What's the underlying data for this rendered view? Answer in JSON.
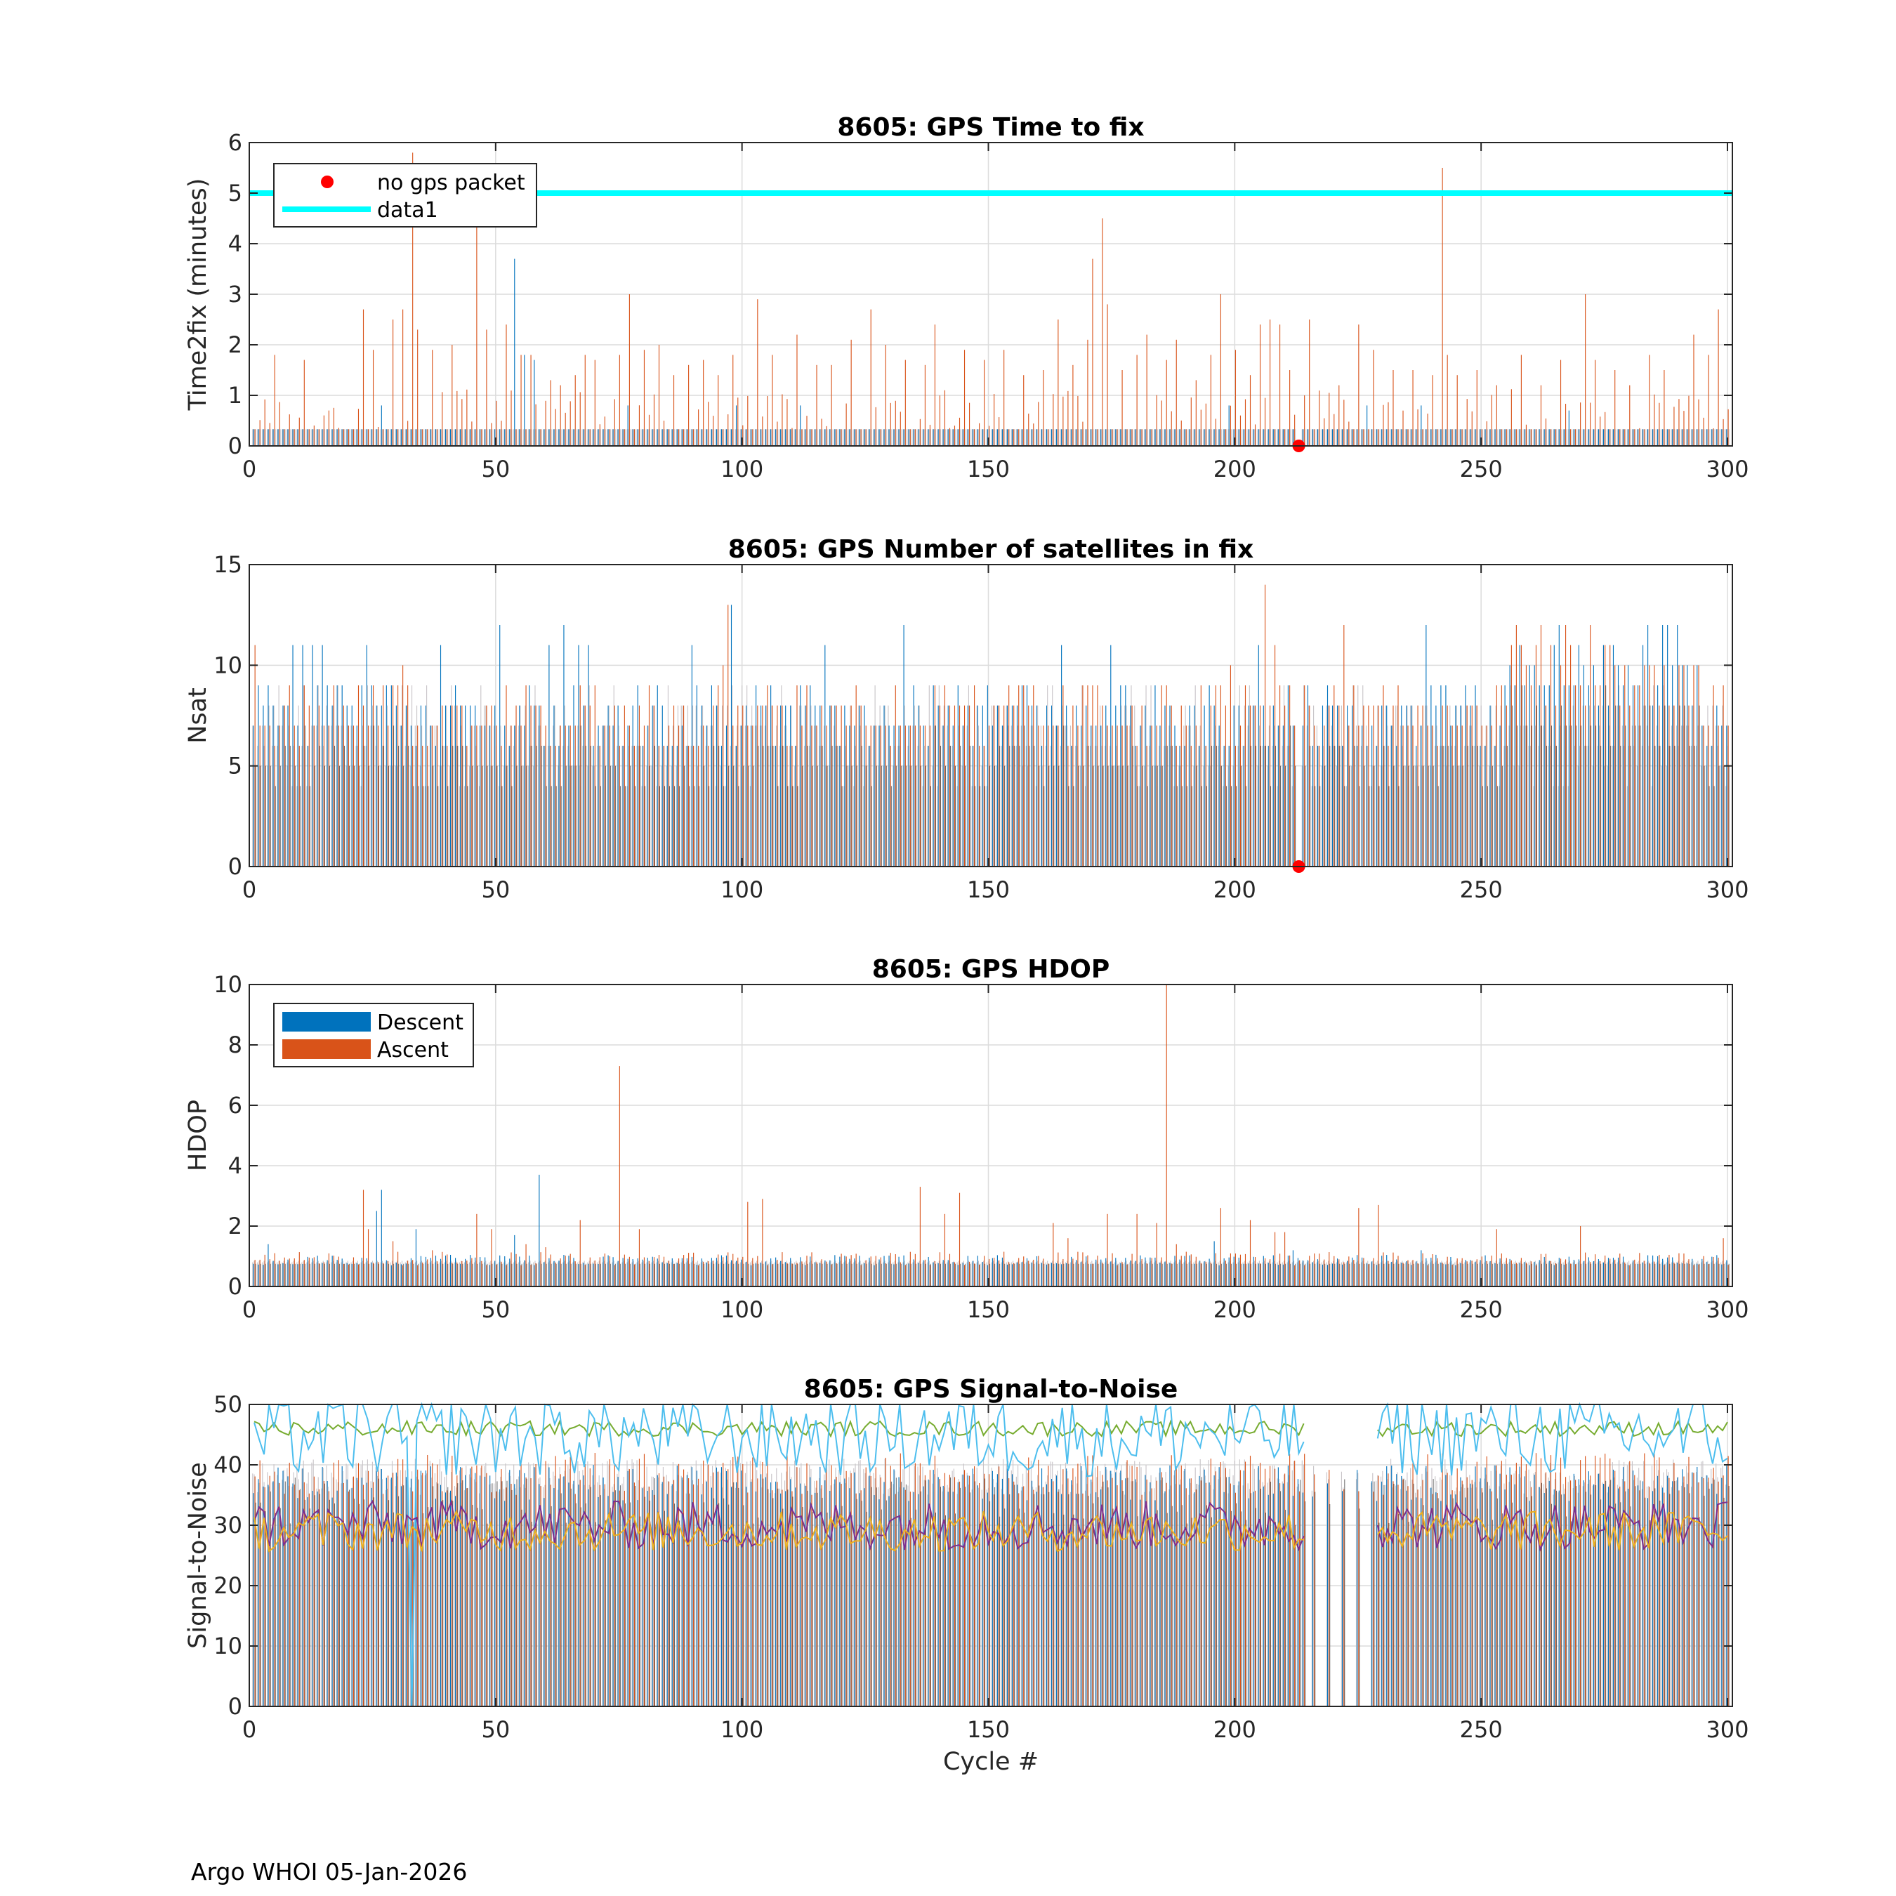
{
  "figure": {
    "footer": "Argo WHOI 05-Jan-2026",
    "series_colors": {
      "descent": "#0072BD",
      "ascent": "#D95319",
      "faded": "#C8C4C8",
      "threshold": "#00FFFF",
      "no_gps_marker": "#FF0000",
      "snr_lines": [
        "#77AC30",
        "#4DBEEE",
        "#7E2F8E",
        "#EDB120"
      ]
    }
  },
  "chart_data": [
    {
      "type": "bar",
      "id": "time2fix",
      "title": "8605: GPS Time to fix",
      "xlabel": "",
      "ylabel": "Time2fix (minutes)",
      "xlim": [
        0,
        301
      ],
      "ylim": [
        0,
        6
      ],
      "xticks": [
        "0",
        "50",
        "100",
        "150",
        "200",
        "250",
        "300"
      ],
      "yticks": [
        "0",
        "1",
        "2",
        "3",
        "4",
        "5",
        "6"
      ],
      "grid": true,
      "threshold_line": {
        "label": "data1",
        "y": 5
      },
      "no_gps_packet": {
        "label": "no gps packet",
        "cycles": [
          213
        ]
      },
      "legend": {
        "placement": "top-left",
        "entries": [
          "no gps packet",
          "data1"
        ]
      },
      "notable_ascent": [
        [
          5,
          1.8
        ],
        [
          11,
          1.7
        ],
        [
          16,
          0.7
        ],
        [
          23,
          2.7
        ],
        [
          25,
          1.9
        ],
        [
          29,
          2.5
        ],
        [
          31,
          2.7
        ],
        [
          33,
          5.8
        ],
        [
          34,
          2.3
        ],
        [
          37,
          1.9
        ],
        [
          41,
          2.0
        ],
        [
          46,
          4.4
        ],
        [
          48,
          2.3
        ],
        [
          52,
          2.4
        ],
        [
          55,
          1.8
        ],
        [
          57,
          1.8
        ],
        [
          61,
          1.3
        ],
        [
          63,
          1.2
        ],
        [
          66,
          1.4
        ],
        [
          68,
          1.8
        ],
        [
          70,
          1.7
        ],
        [
          75,
          1.8
        ],
        [
          77,
          3.0
        ],
        [
          80,
          1.9
        ],
        [
          83,
          2.0
        ],
        [
          86,
          1.4
        ],
        [
          89,
          1.6
        ],
        [
          92,
          1.7
        ],
        [
          95,
          1.4
        ],
        [
          98,
          1.8
        ],
        [
          103,
          2.9
        ],
        [
          106,
          1.8
        ],
        [
          111,
          2.2
        ],
        [
          115,
          1.6
        ],
        [
          118,
          1.6
        ],
        [
          122,
          2.1
        ],
        [
          126,
          2.7
        ],
        [
          129,
          2.0
        ],
        [
          133,
          1.7
        ],
        [
          137,
          1.6
        ],
        [
          139,
          2.4
        ],
        [
          141,
          1.1
        ],
        [
          145,
          1.9
        ],
        [
          149,
          1.7
        ],
        [
          153,
          1.9
        ],
        [
          157,
          1.4
        ],
        [
          161,
          1.5
        ],
        [
          164,
          2.5
        ],
        [
          167,
          1.6
        ],
        [
          170,
          2.1
        ],
        [
          171,
          3.7
        ],
        [
          173,
          4.5
        ],
        [
          174,
          2.8
        ],
        [
          177,
          1.5
        ],
        [
          180,
          1.8
        ],
        [
          182,
          2.2
        ],
        [
          186,
          1.7
        ],
        [
          188,
          2.1
        ],
        [
          192,
          1.3
        ],
        [
          195,
          1.8
        ],
        [
          197,
          3.0
        ],
        [
          200,
          1.9
        ],
        [
          203,
          1.4
        ],
        [
          205,
          2.4
        ],
        [
          207,
          2.5
        ],
        [
          209,
          2.4
        ],
        [
          211,
          1.5
        ],
        [
          214,
          1.0
        ],
        [
          215,
          2.5
        ],
        [
          221,
          1.2
        ],
        [
          225,
          2.4
        ],
        [
          228,
          1.9
        ],
        [
          232,
          1.5
        ],
        [
          236,
          1.5
        ],
        [
          240,
          1.4
        ],
        [
          242,
          5.5
        ],
        [
          243,
          1.8
        ],
        [
          245,
          1.4
        ],
        [
          249,
          1.5
        ],
        [
          253,
          1.2
        ],
        [
          258,
          1.8
        ],
        [
          262,
          1.2
        ],
        [
          266,
          1.7
        ],
        [
          271,
          3.0
        ],
        [
          273,
          1.7
        ],
        [
          277,
          1.5
        ],
        [
          280,
          1.2
        ],
        [
          284,
          1.8
        ],
        [
          287,
          1.5
        ],
        [
          293,
          2.2
        ],
        [
          296,
          1.8
        ],
        [
          298,
          2.7
        ]
      ],
      "notable_descent": [
        [
          27,
          0.8
        ],
        [
          54,
          3.7
        ],
        [
          56,
          1.8
        ],
        [
          58,
          1.7
        ],
        [
          77,
          0.8
        ],
        [
          99,
          0.8
        ],
        [
          112,
          0.8
        ],
        [
          199,
          0.8
        ],
        [
          227,
          0.8
        ],
        [
          238,
          0.8
        ],
        [
          268,
          0.7
        ]
      ]
    },
    {
      "type": "bar",
      "id": "nsat",
      "title": "8605: GPS Number of satellites in fix",
      "xlabel": "",
      "ylabel": "Nsat",
      "xlim": [
        0,
        301
      ],
      "ylim": [
        0,
        15
      ],
      "xticks": [
        "0",
        "50",
        "100",
        "150",
        "200",
        "250",
        "300"
      ],
      "yticks": [
        "0",
        "5",
        "10",
        "15"
      ],
      "grid": true,
      "no_gps_packet": {
        "label": "no gps packet",
        "cycles": [
          213
        ]
      },
      "notable_ascent": [
        [
          1,
          11
        ],
        [
          31,
          10
        ],
        [
          96,
          10
        ],
        [
          97,
          13
        ],
        [
          199,
          10
        ],
        [
          206,
          14
        ],
        [
          208,
          11
        ],
        [
          222,
          12
        ],
        [
          257,
          12
        ],
        [
          262,
          12
        ],
        [
          267,
          12
        ],
        [
          272,
          12
        ]
      ],
      "notable_descent": [
        [
          9,
          11
        ],
        [
          11,
          11
        ],
        [
          13,
          11
        ],
        [
          15,
          11
        ],
        [
          24,
          11
        ],
        [
          39,
          11
        ],
        [
          51,
          12
        ],
        [
          61,
          11
        ],
        [
          64,
          12
        ],
        [
          67,
          11
        ],
        [
          69,
          11
        ],
        [
          90,
          11
        ],
        [
          98,
          13
        ],
        [
          117,
          11
        ],
        [
          133,
          12
        ],
        [
          165,
          11
        ],
        [
          175,
          11
        ],
        [
          205,
          11
        ],
        [
          239,
          12
        ],
        [
          258,
          11
        ],
        [
          266,
          12
        ],
        [
          284,
          12
        ],
        [
          287,
          12
        ],
        [
          288,
          12
        ],
        [
          290,
          12
        ]
      ]
    },
    {
      "type": "bar",
      "id": "hdop",
      "title": "8605: GPS HDOP",
      "xlabel": "",
      "ylabel": "HDOP",
      "xlim": [
        0,
        301
      ],
      "ylim": [
        0,
        10
      ],
      "xticks": [
        "0",
        "50",
        "100",
        "150",
        "200",
        "250",
        "300"
      ],
      "yticks": [
        "0",
        "2",
        "4",
        "6",
        "8",
        "10"
      ],
      "grid": true,
      "legend": {
        "placement": "top-left",
        "entries": [
          "Descent",
          "Ascent"
        ]
      },
      "notable_ascent": [
        [
          23,
          3.2
        ],
        [
          24,
          1.9
        ],
        [
          29,
          1.5
        ],
        [
          37,
          1.2
        ],
        [
          46,
          2.4
        ],
        [
          49,
          1.9
        ],
        [
          56,
          1.4
        ],
        [
          60,
          1.3
        ],
        [
          67,
          2.2
        ],
        [
          75,
          7.3
        ],
        [
          79,
          1.9
        ],
        [
          101,
          2.8
        ],
        [
          104,
          2.9
        ],
        [
          136,
          3.3
        ],
        [
          141,
          2.4
        ],
        [
          144,
          3.1
        ],
        [
          163,
          2.1
        ],
        [
          166,
          1.6
        ],
        [
          174,
          2.4
        ],
        [
          180,
          2.4
        ],
        [
          184,
          2.1
        ],
        [
          186,
          10.0
        ],
        [
          188,
          1.4
        ],
        [
          197,
          2.6
        ],
        [
          203,
          2.2
        ],
        [
          208,
          1.8
        ],
        [
          210,
          1.8
        ],
        [
          225,
          2.6
        ],
        [
          229,
          2.7
        ],
        [
          253,
          1.9
        ],
        [
          270,
          2.0
        ],
        [
          299,
          1.6
        ]
      ],
      "notable_descent": [
        [
          4,
          1.4
        ],
        [
          26,
          2.5
        ],
        [
          27,
          3.2
        ],
        [
          34,
          1.9
        ],
        [
          54,
          1.7
        ],
        [
          59,
          3.7
        ],
        [
          196,
          1.5
        ],
        [
          212,
          1.2
        ],
        [
          238,
          1.2
        ]
      ]
    },
    {
      "type": "bar+line",
      "id": "snr",
      "title": "8605: GPS Signal-to-Noise",
      "xlabel": "Cycle #",
      "ylabel": "Signal-to-Noise",
      "xlim": [
        0,
        301
      ],
      "ylim": [
        0,
        50
      ],
      "xticks": [
        "0",
        "50",
        "100",
        "150",
        "200",
        "250",
        "300"
      ],
      "yticks": [
        "0",
        "10",
        "20",
        "30",
        "40",
        "50"
      ],
      "grid": true,
      "gap_cycles": [
        214,
        229
      ],
      "series": [
        {
          "name": "max snr (green)",
          "typical": 46,
          "range": [
            41,
            50
          ]
        },
        {
          "name": "max snr (cyan)",
          "typical": 45,
          "range": [
            0,
            50
          ],
          "dip_cycle": 33
        },
        {
          "name": "mean snr (purple)",
          "typical": 30,
          "range": [
            19,
            48
          ]
        },
        {
          "name": "min snr (yellow)",
          "typical": 29,
          "range": [
            16,
            40
          ]
        }
      ]
    }
  ]
}
